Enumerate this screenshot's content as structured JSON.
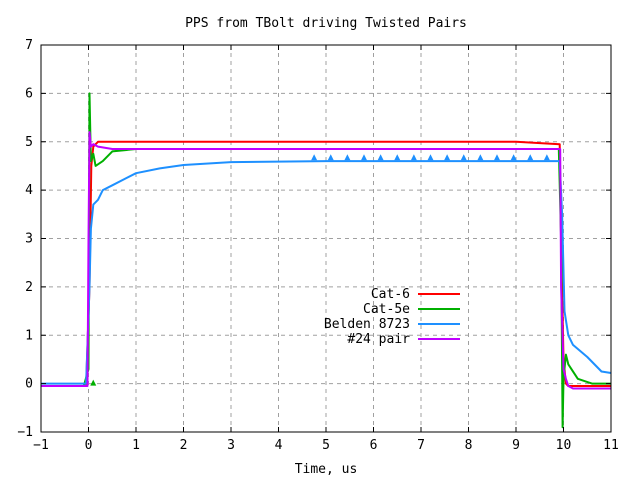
{
  "chart_data": {
    "type": "line",
    "title": "PPS from TBolt driving Twisted Pairs",
    "xlabel": "Time, us",
    "ylabel": "",
    "xlim": [
      -1,
      11
    ],
    "ylim": [
      -1,
      7
    ],
    "xticks": [
      -1,
      0,
      1,
      2,
      3,
      4,
      5,
      6,
      7,
      8,
      9,
      10,
      11
    ],
    "yticks": [
      -1,
      0,
      1,
      2,
      3,
      4,
      5,
      6,
      7
    ],
    "grid": true,
    "legend_position": "center-right",
    "series": [
      {
        "name": "Cat-6",
        "color": "#ff0000",
        "x": [
          -1,
          -0.05,
          0.02,
          0.06,
          0.1,
          0.2,
          0.5,
          1,
          2,
          5,
          9,
          9.92,
          9.95,
          10.0,
          10.05,
          10.1,
          10.2,
          11
        ],
        "y": [
          -0.05,
          -0.05,
          2.0,
          4.5,
          4.9,
          5.0,
          5.0,
          5.0,
          5.0,
          5.0,
          5.0,
          4.95,
          3.0,
          0.5,
          0.0,
          -0.05,
          -0.05,
          -0.05
        ]
      },
      {
        "name": "Cat-5e",
        "color": "#00b000",
        "x": [
          -1,
          -0.1,
          0.0,
          0.02,
          0.05,
          0.1,
          0.15,
          0.3,
          0.5,
          1,
          2,
          5,
          9,
          9.9,
          9.95,
          9.98,
          10.0,
          10.05,
          10.1,
          10.3,
          10.6,
          11
        ],
        "y": [
          -0.05,
          -0.05,
          0.3,
          6.0,
          4.6,
          4.75,
          4.5,
          4.6,
          4.8,
          4.85,
          4.85,
          4.85,
          4.85,
          4.85,
          3.0,
          -0.9,
          0.1,
          0.6,
          0.4,
          0.1,
          0.0,
          0.0
        ],
        "markers_x": [
          0.1
        ],
        "markers_y": [
          0.0
        ]
      },
      {
        "name": "Belden 8723",
        "color": "#1e90ff",
        "x": [
          -1,
          -0.05,
          0.02,
          0.05,
          0.1,
          0.2,
          0.3,
          0.5,
          0.8,
          1.0,
          1.5,
          2.0,
          3.0,
          5.0,
          9.0,
          9.92,
          9.97,
          10.02,
          10.1,
          10.2,
          10.5,
          10.8,
          11
        ],
        "y": [
          0.0,
          0.0,
          2.0,
          3.2,
          3.7,
          3.8,
          4.0,
          4.1,
          4.25,
          4.35,
          4.45,
          4.52,
          4.58,
          4.6,
          4.6,
          4.6,
          3.5,
          1.5,
          1.0,
          0.8,
          0.55,
          0.25,
          0.22
        ],
        "markers_x": [
          4.75,
          5.1,
          5.45,
          5.8,
          6.15,
          6.5,
          6.85,
          7.2,
          7.55,
          7.9,
          8.25,
          8.6,
          8.95,
          9.3,
          9.65
        ],
        "markers_y": [
          4.66,
          4.66,
          4.66,
          4.66,
          4.66,
          4.66,
          4.66,
          4.66,
          4.66,
          4.66,
          4.66,
          4.66,
          4.66,
          4.66,
          4.66
        ]
      },
      {
        "name": "#24 pair",
        "color": "#c000ff",
        "x": [
          -1,
          -0.02,
          0.0,
          0.02,
          0.05,
          0.1,
          0.2,
          0.5,
          1,
          2,
          5,
          9,
          9.93,
          9.95,
          10.0,
          10.05,
          10.1,
          10.2,
          11
        ],
        "y": [
          -0.05,
          -0.05,
          3.0,
          5.2,
          4.9,
          4.95,
          4.9,
          4.85,
          4.85,
          4.85,
          4.85,
          4.85,
          4.85,
          2.0,
          0.3,
          0.1,
          -0.05,
          -0.1,
          -0.1
        ]
      }
    ]
  }
}
